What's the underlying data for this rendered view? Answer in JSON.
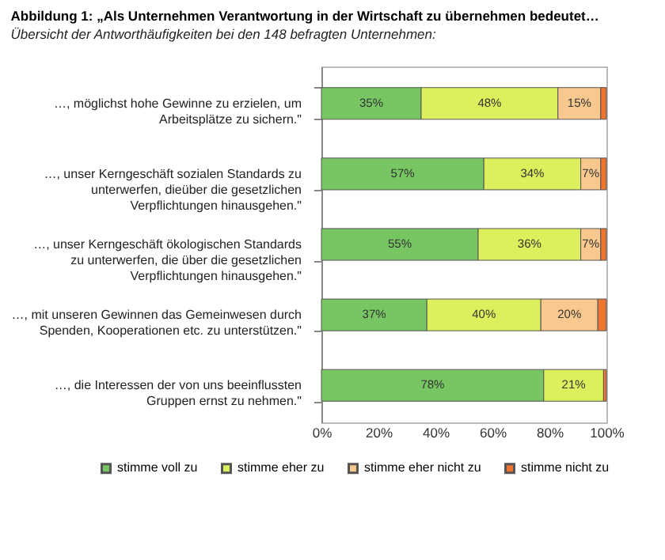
{
  "chart_data": {
    "type": "bar",
    "orientation": "horizontal",
    "stacked": true,
    "title": "Abbildung 1:   „Als Unternehmen Verantwortung in der Wirtschaft zu übernehmen bedeutet…",
    "subtitle": "Übersicht der Antworthäufigkeiten bei den 148 befragten Unternehmen:",
    "categories": [
      "…, möglichst hohe Gewinne zu erzielen, um Arbeitsplätze zu sichern.\"",
      "…, unser Kerngeschäft sozialen Standards zu unterwerfen, dieüber die gesetzlichen Verpflichtungen hinausgehen.\"",
      "…, unser Kerngeschäft ökologischen Standards zu unterwerfen, die über die gesetzlichen Verpflichtungen hinausgehen.\"",
      "…, mit unseren Gewinnen das Gemeinwesen durch Spenden, Kooperationen etc. zu unterstützen.\"",
      "…, die Interessen der von uns beeinflussten Gruppen ernst zu nehmen.\""
    ],
    "series": [
      {
        "name": "stimme voll zu",
        "color": "#77c663",
        "values": [
          35,
          57,
          55,
          37,
          78
        ],
        "value_labels": [
          "35%",
          "57%",
          "55%",
          "37%",
          "78%"
        ]
      },
      {
        "name": "stimme eher zu",
        "color": "#dcef5c",
        "values": [
          48,
          34,
          36,
          40,
          21
        ],
        "value_labels": [
          "48%",
          "34%",
          "36%",
          "40%",
          "21%"
        ]
      },
      {
        "name": "stimme eher nicht zu",
        "color": "#f9c88f",
        "values": [
          15,
          7,
          7,
          20,
          null
        ],
        "value_labels": [
          "15%",
          "7%",
          "7%",
          "20%",
          null
        ]
      },
      {
        "name": "stimme nicht zu",
        "color": "#ee7430",
        "values": [
          2,
          2,
          2,
          3,
          1
        ]
      }
    ],
    "xlim": [
      0,
      100
    ],
    "xticks": [
      {
        "value": 0,
        "label": "0%"
      },
      {
        "value": 20,
        "label": "20%"
      },
      {
        "value": 40,
        "label": "40%"
      },
      {
        "value": 60,
        "label": "60%"
      },
      {
        "value": 80,
        "label": "80%"
      },
      {
        "value": 100,
        "label": "100%"
      }
    ],
    "legend": "bottom"
  }
}
